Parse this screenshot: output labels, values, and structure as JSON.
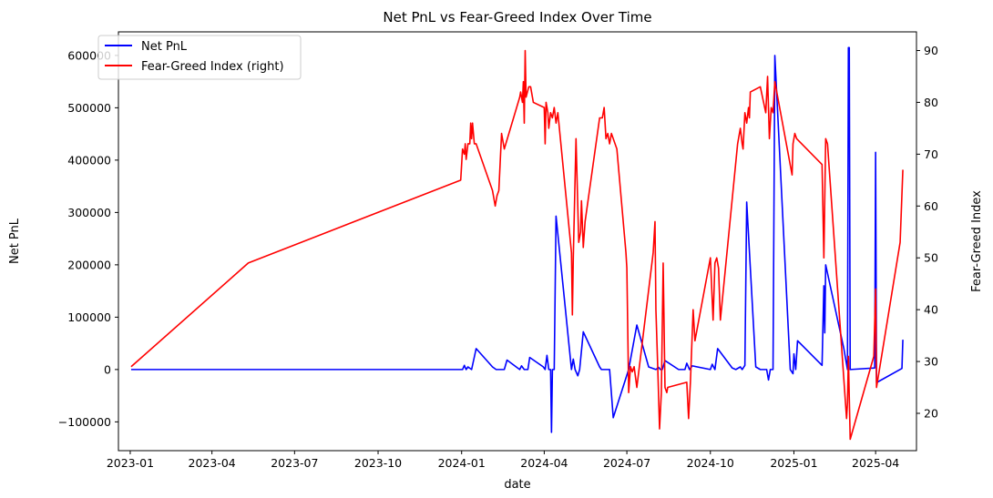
{
  "chart_data": {
    "type": "line",
    "title": "Net PnL vs Fear-Greed Index Over Time",
    "xlabel": "date",
    "ylabel_left": "Net PnL",
    "ylabel_right": "Fear-Greed Index",
    "x_ticks": [
      "2023-01",
      "2023-04",
      "2023-07",
      "2023-10",
      "2024-01",
      "2024-04",
      "2024-07",
      "2024-10",
      "2025-01",
      "2025-04"
    ],
    "y_left_ticks": [
      -100000,
      0,
      100000,
      200000,
      300000,
      400000,
      500000,
      600000
    ],
    "y_left_tick_labels": [
      "−100000",
      "0",
      "100000",
      "200000",
      "300000",
      "400000",
      "500000",
      "600000"
    ],
    "y_right_ticks": [
      20,
      30,
      40,
      50,
      60,
      70,
      80,
      90
    ],
    "y_right_tick_labels": [
      "20",
      "30",
      "40",
      "50",
      "60",
      "70",
      "80",
      "90"
    ],
    "ylim_left": [
      -155000,
      645000
    ],
    "ylim_right": [
      12.8,
      93.6
    ],
    "xlim": [
      "2022-12-19",
      "2025-05-16"
    ],
    "grid": false,
    "legend_position": "top-left",
    "series": [
      {
        "name": "Net PnL",
        "axis": "left",
        "color": "#0000ff",
        "points": [
          [
            "2023-01-02",
            0
          ],
          [
            "2024-01-02",
            0
          ],
          [
            "2024-01-04",
            8000
          ],
          [
            "2024-01-06",
            0
          ],
          [
            "2024-01-08",
            5000
          ],
          [
            "2024-01-12",
            0
          ],
          [
            "2024-01-17",
            40000
          ],
          [
            "2024-02-04",
            5000
          ],
          [
            "2024-02-08",
            0
          ],
          [
            "2024-02-17",
            0
          ],
          [
            "2024-02-20",
            18000
          ],
          [
            "2024-03-05",
            0
          ],
          [
            "2024-03-07",
            7000
          ],
          [
            "2024-03-10",
            0
          ],
          [
            "2024-03-14",
            0
          ],
          [
            "2024-03-16",
            23000
          ],
          [
            "2024-03-31",
            5000
          ],
          [
            "2024-04-02",
            0
          ],
          [
            "2024-04-04",
            27000
          ],
          [
            "2024-04-06",
            0
          ],
          [
            "2024-04-08",
            0
          ],
          [
            "2024-04-09",
            -120000
          ],
          [
            "2024-04-10",
            0
          ],
          [
            "2024-04-12",
            0
          ],
          [
            "2024-04-14",
            293000
          ],
          [
            "2024-05-01",
            0
          ],
          [
            "2024-05-03",
            20000
          ],
          [
            "2024-05-05",
            0
          ],
          [
            "2024-05-08",
            -12000
          ],
          [
            "2024-05-10",
            0
          ],
          [
            "2024-05-14",
            72000
          ],
          [
            "2024-06-01",
            5000
          ],
          [
            "2024-06-03",
            0
          ],
          [
            "2024-06-12",
            0
          ],
          [
            "2024-06-16",
            -92000
          ],
          [
            "2024-07-03",
            0
          ],
          [
            "2024-07-12",
            85000
          ],
          [
            "2024-07-25",
            5000
          ],
          [
            "2024-08-02",
            0
          ],
          [
            "2024-08-05",
            4000
          ],
          [
            "2024-08-07",
            0
          ],
          [
            "2024-08-09",
            0
          ],
          [
            "2024-08-12",
            17000
          ],
          [
            "2024-08-27",
            0
          ],
          [
            "2024-09-03",
            0
          ],
          [
            "2024-09-05",
            12000
          ],
          [
            "2024-09-08",
            0
          ],
          [
            "2024-09-11",
            7000
          ],
          [
            "2024-10-01",
            0
          ],
          [
            "2024-10-03",
            10000
          ],
          [
            "2024-10-06",
            0
          ],
          [
            "2024-10-09",
            40000
          ],
          [
            "2024-10-25",
            3000
          ],
          [
            "2024-10-29",
            0
          ],
          [
            "2024-11-03",
            5000
          ],
          [
            "2024-11-05",
            0
          ],
          [
            "2024-11-08",
            8000
          ],
          [
            "2024-11-10",
            320000
          ],
          [
            "2024-11-20",
            5000
          ],
          [
            "2024-11-25",
            0
          ],
          [
            "2024-11-29",
            0
          ],
          [
            "2024-12-02",
            0
          ],
          [
            "2024-12-04",
            -20000
          ],
          [
            "2024-12-06",
            0
          ],
          [
            "2024-12-09",
            0
          ],
          [
            "2024-12-11",
            600000
          ],
          [
            "2024-12-28",
            0
          ],
          [
            "2024-12-31",
            -8000
          ],
          [
            "2025-01-01",
            30000
          ],
          [
            "2025-01-03",
            0
          ],
          [
            "2025-01-05",
            55000
          ],
          [
            "2025-02-01",
            8000
          ],
          [
            "2025-02-03",
            160000
          ],
          [
            "2025-02-04",
            70000
          ],
          [
            "2025-02-05",
            200000
          ],
          [
            "2025-02-25",
            40000
          ],
          [
            "2025-03-01",
            0
          ],
          [
            "2025-03-02",
            615000
          ],
          [
            "2025-03-03",
            615000
          ],
          [
            "2025-03-04",
            0
          ],
          [
            "2025-03-31",
            3000
          ],
          [
            "2025-04-01",
            415000
          ],
          [
            "2025-04-02",
            -25000
          ],
          [
            "2025-04-30",
            2000
          ],
          [
            "2025-05-01",
            57000
          ]
        ]
      },
      {
        "name": "Fear-Greed Index (right)",
        "axis": "right",
        "color": "#ff0000",
        "points": [
          [
            "2023-01-02",
            29
          ],
          [
            "2023-05-11",
            49
          ],
          [
            "2023-12-31",
            65
          ],
          [
            "2024-01-02",
            71
          ],
          [
            "2024-01-04",
            70
          ],
          [
            "2024-01-05",
            72
          ],
          [
            "2024-01-06",
            69
          ],
          [
            "2024-01-08",
            72
          ],
          [
            "2024-01-10",
            72
          ],
          [
            "2024-01-11",
            76
          ],
          [
            "2024-01-12",
            73
          ],
          [
            "2024-01-13",
            76
          ],
          [
            "2024-01-15",
            72
          ],
          [
            "2024-01-17",
            72
          ],
          [
            "2024-02-04",
            63
          ],
          [
            "2024-02-07",
            60
          ],
          [
            "2024-02-09",
            62
          ],
          [
            "2024-02-11",
            63
          ],
          [
            "2024-02-14",
            74
          ],
          [
            "2024-02-17",
            71
          ],
          [
            "2024-03-05",
            81
          ],
          [
            "2024-03-06",
            82
          ],
          [
            "2024-03-08",
            80
          ],
          [
            "2024-03-09",
            84
          ],
          [
            "2024-03-10",
            76
          ],
          [
            "2024-03-11",
            90
          ],
          [
            "2024-03-12",
            81
          ],
          [
            "2024-03-15",
            83
          ],
          [
            "2024-03-17",
            83
          ],
          [
            "2024-03-20",
            80
          ],
          [
            "2024-04-01",
            79
          ],
          [
            "2024-04-02",
            72
          ],
          [
            "2024-04-03",
            80
          ],
          [
            "2024-04-05",
            78
          ],
          [
            "2024-04-06",
            75
          ],
          [
            "2024-04-08",
            78
          ],
          [
            "2024-04-10",
            77
          ],
          [
            "2024-04-12",
            79
          ],
          [
            "2024-04-14",
            76
          ],
          [
            "2024-04-16",
            78
          ],
          [
            "2024-05-01",
            51
          ],
          [
            "2024-05-02",
            39
          ],
          [
            "2024-05-03",
            50
          ],
          [
            "2024-05-06",
            73
          ],
          [
            "2024-05-09",
            53
          ],
          [
            "2024-05-11",
            55
          ],
          [
            "2024-05-12",
            61
          ],
          [
            "2024-05-14",
            52
          ],
          [
            "2024-05-16",
            57
          ],
          [
            "2024-06-01",
            77
          ],
          [
            "2024-06-04",
            77
          ],
          [
            "2024-06-06",
            79
          ],
          [
            "2024-06-08",
            73
          ],
          [
            "2024-06-10",
            74
          ],
          [
            "2024-06-12",
            72
          ],
          [
            "2024-06-14",
            74
          ],
          [
            "2024-06-20",
            71
          ],
          [
            "2024-06-30",
            51
          ],
          [
            "2024-07-01",
            48
          ],
          [
            "2024-07-03",
            24
          ],
          [
            "2024-07-05",
            29
          ],
          [
            "2024-07-07",
            28
          ],
          [
            "2024-07-09",
            29
          ],
          [
            "2024-07-12",
            25
          ],
          [
            "2024-07-30",
            51
          ],
          [
            "2024-08-01",
            57
          ],
          [
            "2024-08-02",
            40
          ],
          [
            "2024-08-04",
            29
          ],
          [
            "2024-08-06",
            17
          ],
          [
            "2024-08-08",
            24
          ],
          [
            "2024-08-10",
            49
          ],
          [
            "2024-08-12",
            25
          ],
          [
            "2024-08-14",
            24
          ],
          [
            "2024-08-15",
            25
          ],
          [
            "2024-09-05",
            26
          ],
          [
            "2024-09-07",
            19
          ],
          [
            "2024-09-09",
            26
          ],
          [
            "2024-09-12",
            40
          ],
          [
            "2024-09-14",
            34
          ],
          [
            "2024-10-01",
            50
          ],
          [
            "2024-10-04",
            38
          ],
          [
            "2024-10-06",
            49
          ],
          [
            "2024-10-08",
            50
          ],
          [
            "2024-10-10",
            48
          ],
          [
            "2024-10-12",
            38
          ],
          [
            "2024-10-31",
            72
          ],
          [
            "2024-11-03",
            75
          ],
          [
            "2024-11-05",
            72
          ],
          [
            "2024-11-06",
            71
          ],
          [
            "2024-11-08",
            78
          ],
          [
            "2024-11-10",
            76
          ],
          [
            "2024-11-12",
            79
          ],
          [
            "2024-11-13",
            77
          ],
          [
            "2024-11-14",
            82
          ],
          [
            "2024-11-25",
            83
          ],
          [
            "2024-12-01",
            78
          ],
          [
            "2024-12-03",
            85
          ],
          [
            "2024-12-05",
            73
          ],
          [
            "2024-12-07",
            79
          ],
          [
            "2024-12-09",
            78
          ],
          [
            "2024-12-11",
            84
          ],
          [
            "2024-12-30",
            66
          ],
          [
            "2024-12-31",
            72
          ],
          [
            "2025-01-02",
            74
          ],
          [
            "2025-01-04",
            73
          ],
          [
            "2025-02-01",
            68
          ],
          [
            "2025-02-03",
            50
          ],
          [
            "2025-02-05",
            73
          ],
          [
            "2025-02-07",
            72
          ],
          [
            "2025-02-28",
            19
          ],
          [
            "2025-03-01",
            22
          ],
          [
            "2025-03-02",
            31
          ],
          [
            "2025-03-04",
            15
          ],
          [
            "2025-03-30",
            31
          ],
          [
            "2025-04-01",
            44
          ],
          [
            "2025-04-02",
            25
          ],
          [
            "2025-04-28",
            53
          ],
          [
            "2025-05-01",
            67
          ]
        ]
      }
    ]
  }
}
